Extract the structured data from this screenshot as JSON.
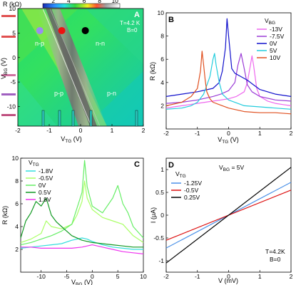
{
  "colorbar": {
    "label": "R (kΩ)",
    "ticks": [
      "2",
      "4",
      "6",
      "8",
      "10"
    ]
  },
  "panel_a": {
    "letter": "A",
    "annotations": {
      "temperature": "T=4.2 K",
      "field": "B=0"
    },
    "regions": [
      "n-p",
      "n-n",
      "p-p",
      "p-n"
    ],
    "x_ticks": [
      "-2",
      "-1",
      "0",
      "1",
      "2"
    ],
    "y_ticks": [
      "10",
      "5",
      "0",
      "-5",
      "-10"
    ],
    "xlabel": "V",
    "xlabel_sub": "TG",
    "xlabel_unit": " (V)",
    "ylabel": "V",
    "ylabel_sub": "BG",
    "ylabel_unit": " (V)"
  },
  "panel_b": {
    "letter": "B",
    "legend_title": "V",
    "legend_title_sub": "BG",
    "x_ticks": [
      "-2",
      "-1",
      "0",
      "1",
      "2"
    ],
    "y_ticks": [
      "10",
      "8",
      "6",
      "4",
      "2"
    ],
    "xlabel": "V",
    "xlabel_sub": "TG",
    "xlabel_unit": " (V)",
    "ylabel": "R (kΩ)"
  },
  "panel_c": {
    "letter": "C",
    "legend_title": "V",
    "legend_title_sub": "TG",
    "x_ticks": [
      "-10",
      "-5",
      "0",
      "5",
      "10"
    ],
    "y_ticks": [
      "10",
      "8",
      "6",
      "4",
      "2"
    ],
    "xlabel": "V",
    "xlabel_sub": "BG",
    "xlabel_unit": " (V)",
    "ylabel": "R (kΩ)"
  },
  "panel_d": {
    "letter": "D",
    "legend_title": "V",
    "legend_title_sub": "TG",
    "annotation_vbg": "V",
    "annotation_vbg_sub": "BG",
    "annotation_vbg_value": " = 5V",
    "annotations": {
      "temperature": "T=4.2K",
      "field": "B=0"
    },
    "x_ticks": [
      "-2",
      "-1",
      "0",
      "1",
      "2"
    ],
    "y_ticks": [
      "1",
      "0.5",
      "0",
      "-0.5",
      "-1"
    ],
    "xlabel": "V (mV)",
    "ylabel": "I (μA)"
  },
  "chart_data": [
    {
      "panel": "A",
      "type": "heatmap",
      "xlabel": "VTG (V)",
      "ylabel": "VBG (V)",
      "xlim": [
        -2,
        2
      ],
      "ylim": [
        -14,
        10
      ],
      "color_scale": {
        "label": "R (kΩ)",
        "range": [
          2,
          10
        ],
        "colormap": "blue-cyan-green-yellow-red-gray-white"
      },
      "annotations": [
        "T=4.2 K",
        "B=0",
        "n-p",
        "n-n",
        "p-p",
        "p-n"
      ],
      "markers": [
        {
          "vtg": -1.3,
          "vbg": 5.5,
          "color": "#9b8cf0"
        },
        {
          "vtg": -0.6,
          "vbg": 5.5,
          "color": "#ee1111"
        },
        {
          "vtg": 0.15,
          "vbg": 5.5,
          "color": "#000000"
        }
      ],
      "dirac_ridge": {
        "x": [
          -1.7,
          -0.1
        ],
        "y": [
          10,
          -14
        ]
      }
    },
    {
      "panel": "B",
      "type": "line",
      "xlabel": "VTG (V)",
      "ylabel": "R (kΩ)",
      "xlim": [
        -2,
        2
      ],
      "ylim": [
        0,
        10
      ],
      "series": [
        {
          "name": "-13V",
          "color": "#ee66ee",
          "x": [
            -2,
            -1.75,
            -1.5,
            -1.25,
            -1,
            -0.75,
            -0.5,
            -0.25,
            0,
            0.25,
            0.5,
            0.6,
            0.7,
            0.75,
            0.8,
            0.85,
            0.9,
            1.0,
            1.25,
            1.5,
            1.75,
            2
          ],
          "y": [
            1.8,
            1.9,
            2.0,
            2.1,
            2.2,
            2.3,
            2.4,
            2.5,
            2.6,
            2.8,
            3.2,
            4.0,
            5.5,
            6.3,
            5.5,
            4.5,
            3.5,
            2.8,
            2.4,
            2.2,
            2.1,
            2.0
          ]
        },
        {
          "name": "-7.5V",
          "color": "#9a3cd6",
          "x": [
            -2,
            -1.5,
            -1,
            -0.5,
            -0.25,
            0,
            0.2,
            0.3,
            0.4,
            0.5,
            0.6,
            0.75,
            1,
            1.5,
            2
          ],
          "y": [
            2.2,
            2.3,
            2.5,
            2.8,
            3.0,
            3.3,
            4.0,
            5.5,
            6.5,
            5.2,
            3.8,
            3.2,
            2.8,
            2.5,
            2.4
          ]
        },
        {
          "name": "0V",
          "color": "#1111cc",
          "x": [
            -2,
            -1.5,
            -1,
            -0.5,
            -0.3,
            -0.2,
            -0.1,
            -0.05,
            0,
            0.1,
            0.2,
            0.4,
            0.6,
            0.8,
            1,
            1.5,
            2
          ],
          "y": [
            2.8,
            3.0,
            3.2,
            3.5,
            4.0,
            5.0,
            7.0,
            9.5,
            8.0,
            5.2,
            4.8,
            4.5,
            4.2,
            3.8,
            3.4,
            3.0,
            2.8
          ]
        },
        {
          "name": "5V",
          "color": "#22ccdd",
          "x": [
            -2,
            -1.5,
            -1.2,
            -1,
            -0.8,
            -0.6,
            -0.5,
            -0.45,
            -0.4,
            -0.3,
            -0.2,
            0,
            0.5,
            1,
            1.5,
            2
          ],
          "y": [
            1.7,
            1.8,
            2.0,
            2.3,
            3.0,
            4.5,
            6.0,
            6.5,
            5.5,
            4.0,
            3.0,
            2.5,
            2.0,
            1.9,
            1.8,
            1.7
          ]
        },
        {
          "name": "10V",
          "color": "#e05020",
          "x": [
            -2,
            -1.5,
            -1.2,
            -1,
            -0.9,
            -0.85,
            -0.8,
            -0.75,
            -0.7,
            -0.6,
            -0.5,
            -0.3,
            0,
            0.5,
            1,
            1.5,
            2
          ],
          "y": [
            2.0,
            2.3,
            2.8,
            3.5,
            5.0,
            6.7,
            5.5,
            4.2,
            3.2,
            2.6,
            2.3,
            2.1,
            1.8,
            1.5,
            1.4,
            1.4,
            1.3
          ]
        }
      ]
    },
    {
      "panel": "C",
      "type": "line",
      "xlabel": "VBG (V)",
      "ylabel": "R (kΩ)",
      "xlim": [
        -14,
        10
      ],
      "ylim": [
        0,
        10
      ],
      "series": [
        {
          "name": "-1.8V",
          "color": "#33dddd",
          "x": [
            -14,
            -12,
            -10,
            -8,
            -6,
            -4,
            -2,
            -1,
            0,
            2,
            4,
            6,
            8,
            10
          ],
          "y": [
            2.1,
            2.2,
            2.3,
            2.4,
            2.5,
            2.8,
            3.0,
            2.9,
            2.7,
            2.4,
            2.2,
            2.1,
            2.0,
            2.0
          ]
        },
        {
          "name": "-0.5V",
          "color": "#aaff66",
          "x": [
            -14,
            -12,
            -10,
            -9,
            -8,
            -6,
            -4,
            -3,
            -2,
            -1.5,
            -1,
            0,
            2,
            4,
            6,
            8,
            10
          ],
          "y": [
            2.6,
            2.9,
            3.4,
            4.5,
            4.0,
            3.8,
            4.2,
            5.0,
            6.2,
            8.0,
            6.5,
            5.5,
            4.8,
            4.5,
            4.2,
            3.2,
            2.6
          ]
        },
        {
          "name": "0V",
          "color": "#66ee66",
          "x": [
            -14,
            -12,
            -10,
            -8,
            -6,
            -4,
            -2,
            -1.5,
            -1,
            0,
            2,
            4,
            5,
            6,
            7,
            8,
            10
          ],
          "y": [
            2.4,
            2.6,
            2.9,
            3.2,
            3.6,
            4.2,
            7.0,
            9.8,
            7.5,
            5.8,
            5.2,
            6.5,
            7.6,
            6.0,
            5.2,
            4.0,
            3.0
          ]
        },
        {
          "name": "0.5V",
          "color": "#119922",
          "x": [
            -14,
            -13,
            -12,
            -11,
            -10,
            -9,
            -8,
            -7,
            -6,
            -5,
            -4,
            -2,
            0,
            2,
            4,
            6,
            8,
            10
          ],
          "y": [
            3.0,
            4.5,
            5.2,
            6.2,
            5.8,
            6.5,
            5.0,
            4.4,
            4.0,
            3.6,
            3.2,
            2.8,
            2.6,
            2.5,
            2.4,
            2.3,
            2.2,
            2.2
          ]
        },
        {
          "name": "1.8V",
          "color": "#ee33ee",
          "x": [
            -14,
            -12,
            -10,
            -8,
            -6,
            -4,
            -2,
            -1,
            0,
            2,
            4,
            6,
            8,
            10
          ],
          "y": [
            2.2,
            2.2,
            2.1,
            2.1,
            2.1,
            2.1,
            2.2,
            2.3,
            2.4,
            2.2,
            2.0,
            1.8,
            1.7,
            1.6
          ]
        }
      ]
    },
    {
      "panel": "D",
      "type": "line",
      "xlabel": "V (mV)",
      "ylabel": "I (μA)",
      "xlim": [
        -2,
        2
      ],
      "ylim": [
        -1.25,
        1.25
      ],
      "series": [
        {
          "name": "-1.25V",
          "color": "#4a90e8",
          "x": [
            -2,
            2
          ],
          "y": [
            -0.72,
            0.72
          ]
        },
        {
          "name": "-0.5V",
          "color": "#dd1111",
          "x": [
            -2,
            2
          ],
          "y": [
            -0.55,
            0.55
          ]
        },
        {
          "name": "0.25V",
          "color": "#000000",
          "x": [
            -2,
            2
          ],
          "y": [
            -1.05,
            1.05
          ]
        }
      ]
    }
  ]
}
